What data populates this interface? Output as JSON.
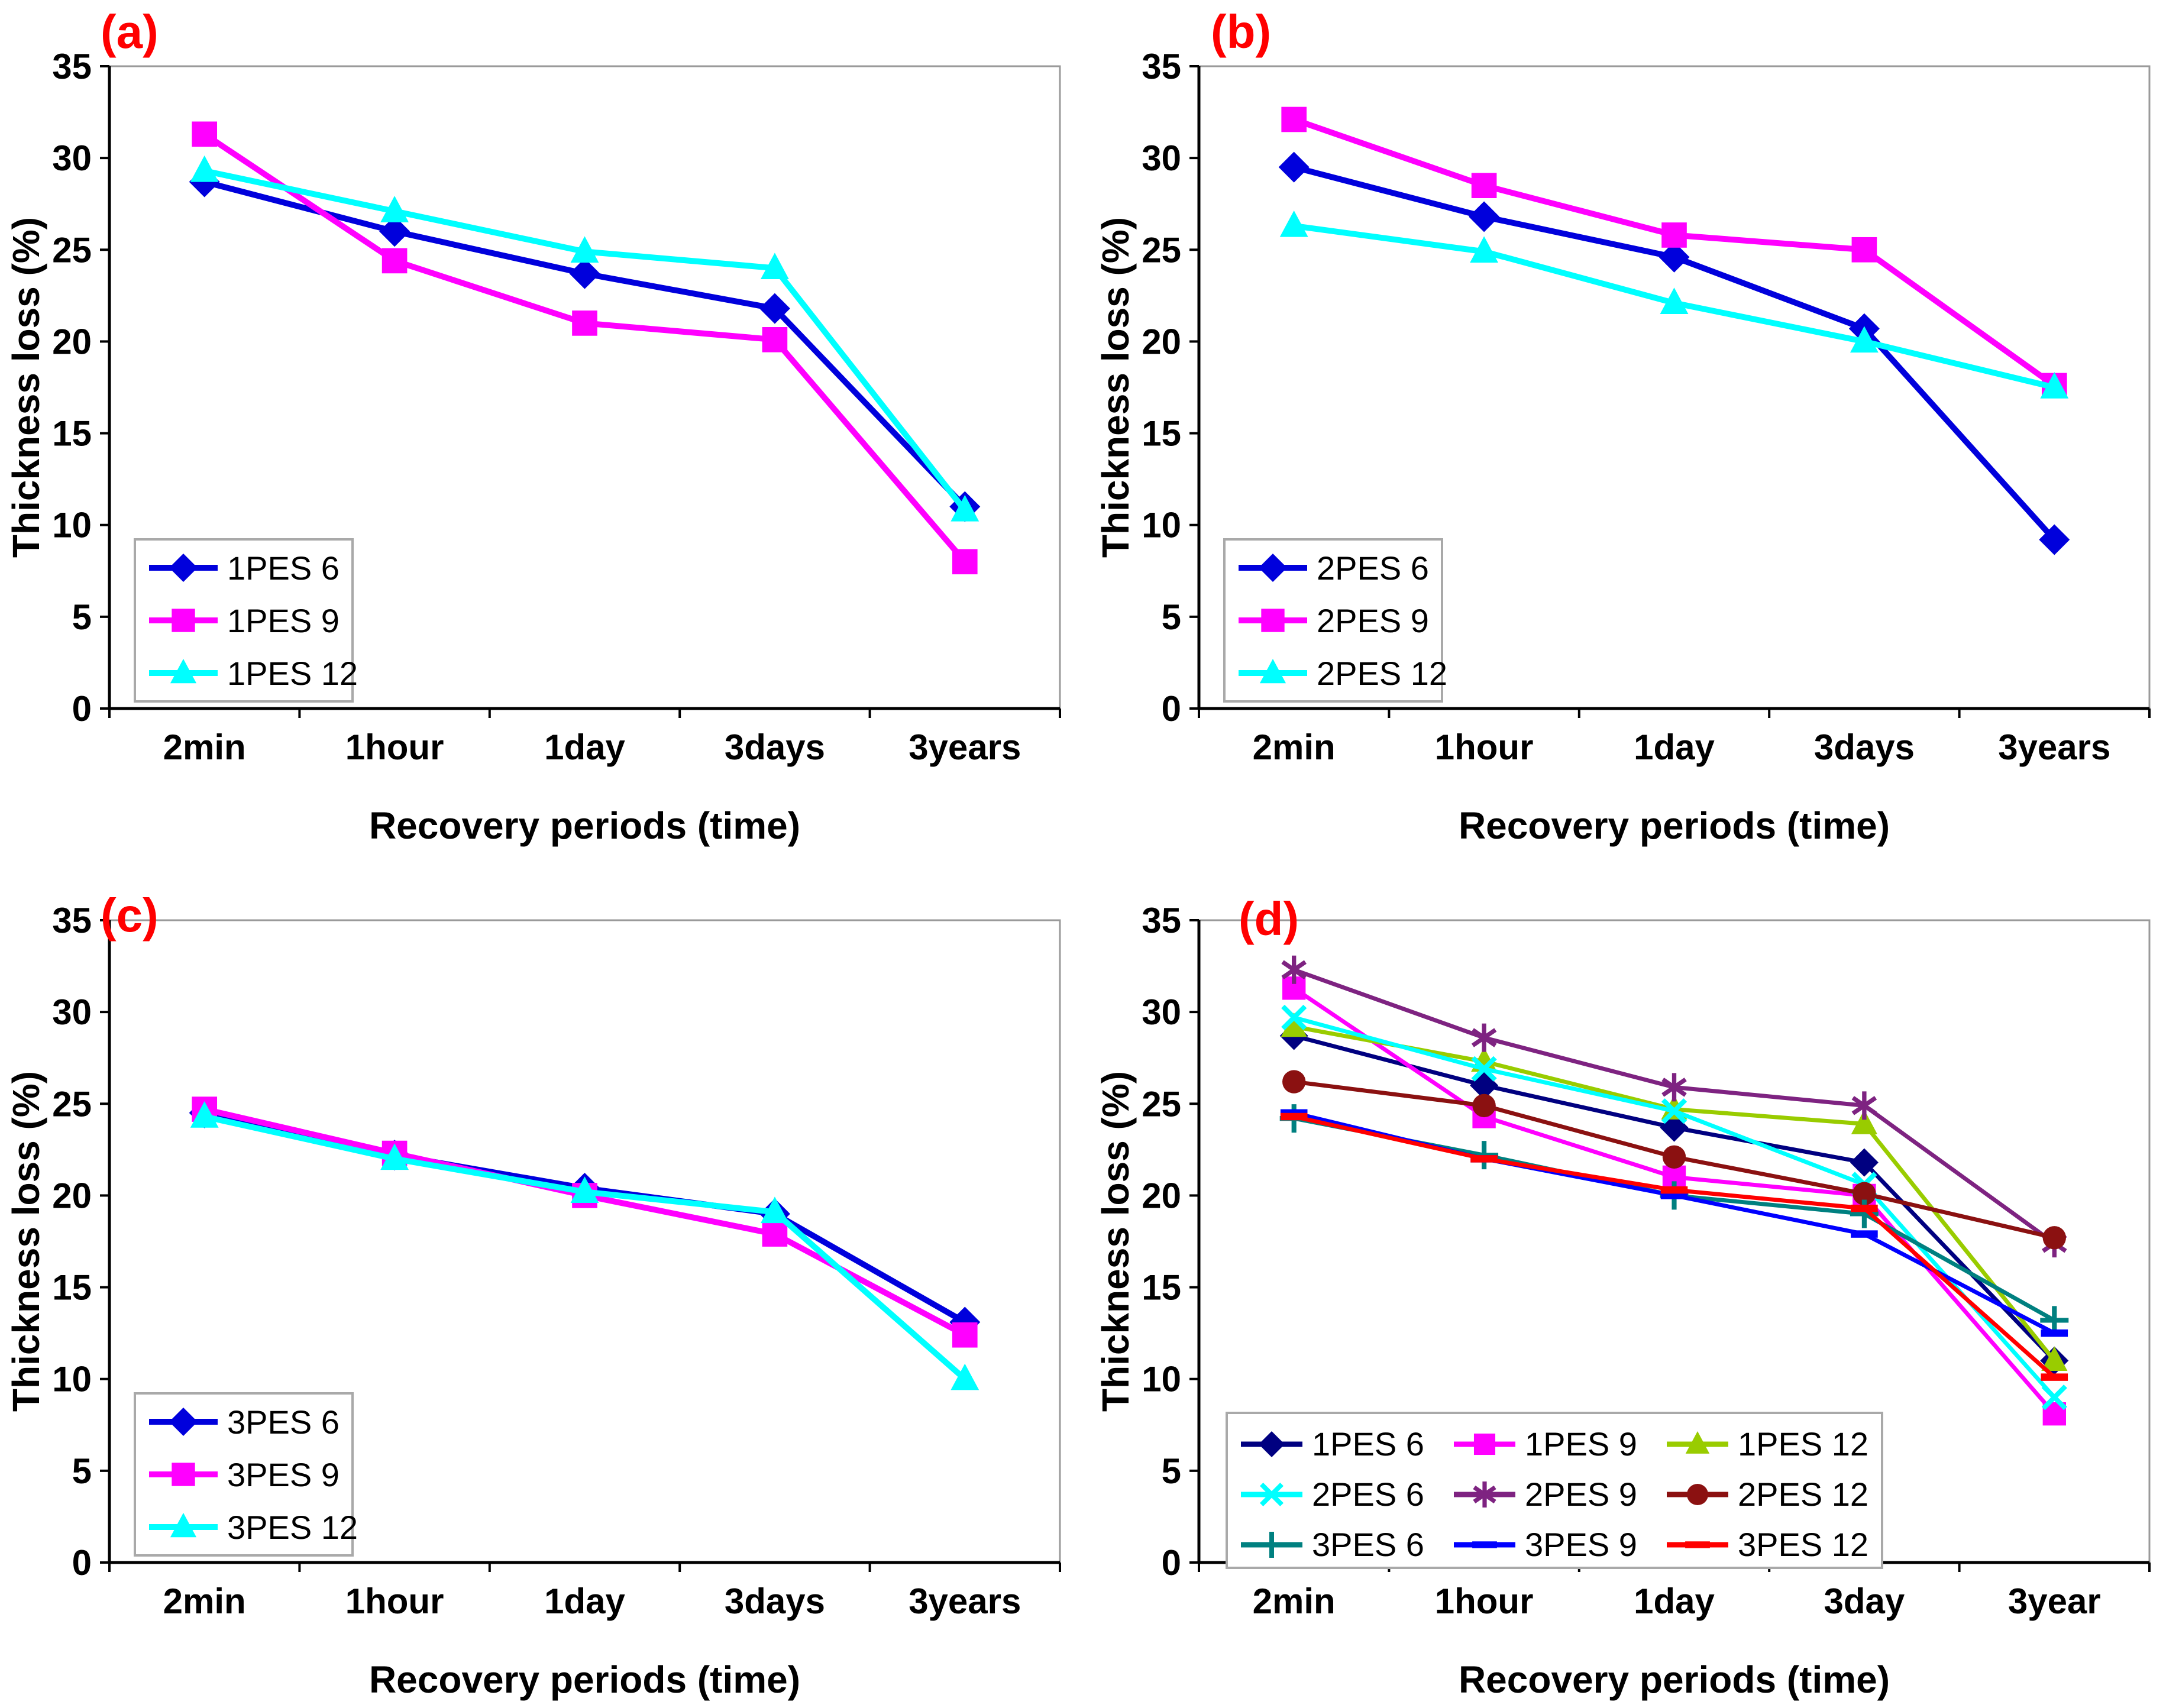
{
  "figure": {
    "background": "#FFFFFF",
    "panel_label_color": "#FF0000",
    "axis_color": "#000000",
    "plot_border_color": "#9A9A9A",
    "legend_border_color": "#A9A9A9"
  },
  "chart_data": [
    {
      "type": "line",
      "panel_label": "(a)",
      "xlabel": "Recovery periods (time)",
      "ylabel": "Thickness loss (%)",
      "categories": [
        "2min",
        "1hour",
        "1day",
        "3days",
        "3years"
      ],
      "ylim": [
        0,
        35
      ],
      "y_ticks": [
        0,
        5,
        10,
        15,
        20,
        25,
        30,
        35
      ],
      "grid": false,
      "legend_position": "lower-left-inside",
      "legend_columns": 1,
      "series": [
        {
          "name": "1PES 6",
          "color": "#0000DC",
          "marker": "diamond",
          "values": [
            28.7,
            26.0,
            23.7,
            21.8,
            11.0
          ]
        },
        {
          "name": "1PES 9",
          "color": "#FF00FF",
          "marker": "square",
          "values": [
            31.3,
            24.4,
            21.0,
            20.1,
            8.0
          ]
        },
        {
          "name": "1PES 12",
          "color": "#00FFFF",
          "marker": "triangle",
          "values": [
            29.3,
            27.1,
            24.9,
            24.0,
            10.8
          ]
        }
      ]
    },
    {
      "type": "line",
      "panel_label": "(b)",
      "xlabel": "Recovery periods (time)",
      "ylabel": "Thickness loss (%)",
      "categories": [
        "2min",
        "1hour",
        "1day",
        "3days",
        "3years"
      ],
      "ylim": [
        0,
        35
      ],
      "y_ticks": [
        0,
        5,
        10,
        15,
        20,
        25,
        30,
        35
      ],
      "grid": false,
      "legend_position": "lower-left-inside",
      "legend_columns": 1,
      "series": [
        {
          "name": "2PES 6",
          "color": "#0000DC",
          "marker": "diamond",
          "values": [
            29.5,
            26.8,
            24.6,
            20.7,
            9.2
          ]
        },
        {
          "name": "2PES 9",
          "color": "#FF00FF",
          "marker": "square",
          "values": [
            32.1,
            28.5,
            25.8,
            25.0,
            17.6
          ]
        },
        {
          "name": "2PES 12",
          "color": "#00FFFF",
          "marker": "triangle",
          "values": [
            26.3,
            24.9,
            22.1,
            20.0,
            17.5
          ]
        }
      ]
    },
    {
      "type": "line",
      "panel_label": "(c)",
      "xlabel": "Recovery periods (time)",
      "ylabel": "Thickness loss (%)",
      "categories": [
        "2min",
        "1hour",
        "1day",
        "3days",
        "3years"
      ],
      "ylim": [
        0,
        35
      ],
      "y_ticks": [
        0,
        5,
        10,
        15,
        20,
        25,
        30,
        35
      ],
      "grid": false,
      "legend_position": "lower-left-inside",
      "legend_columns": 1,
      "series": [
        {
          "name": "3PES 6",
          "color": "#0000DC",
          "marker": "diamond",
          "values": [
            24.5,
            22.2,
            20.4,
            19.0,
            13.1
          ]
        },
        {
          "name": "3PES 9",
          "color": "#FF00FF",
          "marker": "square",
          "values": [
            24.7,
            22.3,
            20.0,
            17.9,
            12.4
          ]
        },
        {
          "name": "3PES 12",
          "color": "#00FFFF",
          "marker": "triangle",
          "values": [
            24.3,
            22.0,
            20.2,
            19.1,
            10.0
          ]
        }
      ]
    },
    {
      "type": "line",
      "panel_label": "(d)",
      "xlabel": "Recovery periods (time)",
      "ylabel": "Thickness loss (%)",
      "categories": [
        "2min",
        "1hour",
        "1day",
        "3day",
        "3year"
      ],
      "ylim": [
        0,
        35
      ],
      "y_ticks": [
        0,
        5,
        10,
        15,
        20,
        25,
        30,
        35
      ],
      "grid": false,
      "legend_position": "lower-left-inside",
      "legend_columns": 3,
      "series": [
        {
          "name": "1PES 6",
          "color": "#000080",
          "marker": "diamond",
          "values": [
            28.7,
            26.0,
            23.7,
            21.8,
            11.0
          ]
        },
        {
          "name": "1PES 9",
          "color": "#FF00FF",
          "marker": "square",
          "values": [
            31.3,
            24.3,
            21.0,
            20.0,
            8.1
          ]
        },
        {
          "name": "1PES 12",
          "color": "#99CC00",
          "marker": "triangle",
          "values": [
            29.2,
            27.3,
            24.7,
            23.9,
            11.0
          ]
        },
        {
          "name": "2PES 6",
          "color": "#00FFFF",
          "marker": "x",
          "values": [
            29.7,
            26.9,
            24.6,
            20.6,
            9.0
          ]
        },
        {
          "name": "2PES 9",
          "color": "#7E2381",
          "marker": "asterisk",
          "values": [
            32.3,
            28.6,
            25.9,
            24.9,
            17.4
          ]
        },
        {
          "name": "2PES 12",
          "color": "#8B1111",
          "marker": "circle",
          "values": [
            26.2,
            24.9,
            22.1,
            20.1,
            17.7
          ]
        },
        {
          "name": "3PES 6",
          "color": "#008080",
          "marker": "plus",
          "values": [
            24.2,
            22.2,
            20.0,
            19.0,
            13.2
          ]
        },
        {
          "name": "3PES 9",
          "color": "#0000FF",
          "marker": "dash",
          "values": [
            24.5,
            22.0,
            20.0,
            17.9,
            12.5
          ]
        },
        {
          "name": "3PES 12",
          "color": "#FF0000",
          "marker": "dash",
          "values": [
            24.3,
            22.0,
            20.3,
            19.3,
            10.1
          ]
        }
      ]
    }
  ]
}
